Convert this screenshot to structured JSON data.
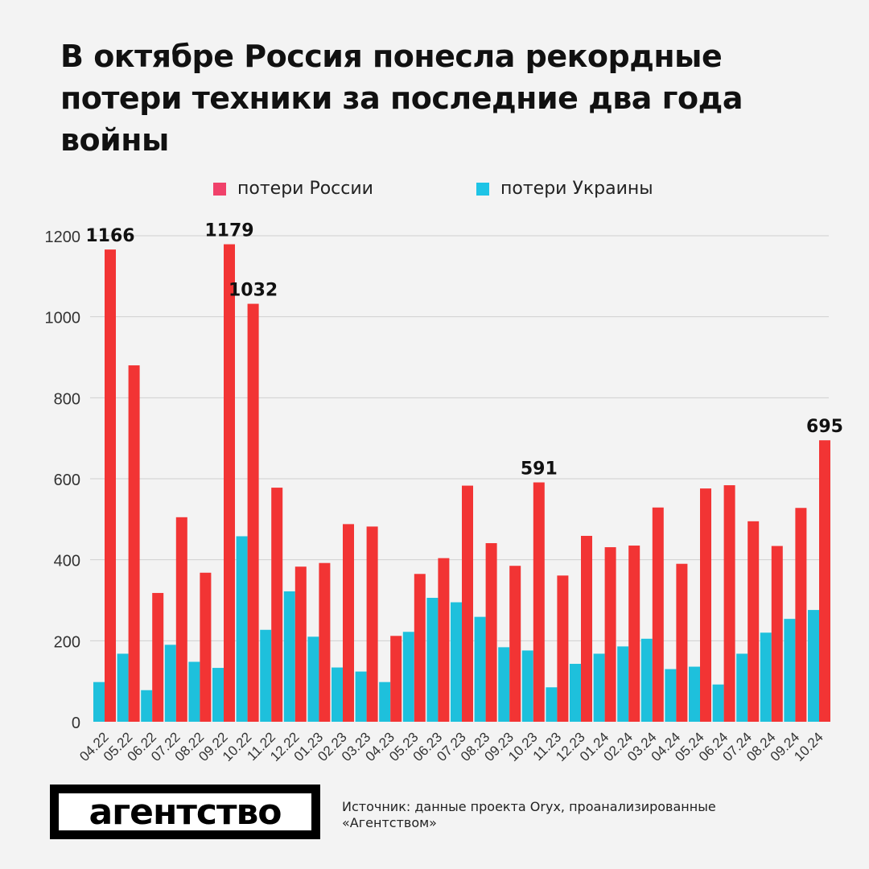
{
  "title": "В октябре Россия понесла рекордные потери техники за последние два года войны",
  "logo": "агентство",
  "source": "Источник: данные проекта Oryx, проанализированные «Агентством»",
  "chart_data": {
    "type": "bar",
    "categories": [
      "04.22",
      "05.22",
      "06.22",
      "07.22",
      "08.22",
      "09.22",
      "10.22",
      "11.22",
      "12.22",
      "01.23",
      "02.23",
      "03.23",
      "04.23",
      "05.23",
      "06.23",
      "07.23",
      "08.23",
      "09.23",
      "10.23",
      "11.23",
      "12.23",
      "01.24",
      "02.24",
      "03.24",
      "04.24",
      "05.24",
      "06.24",
      "07.24",
      "08.24",
      "09.24",
      "10.24"
    ],
    "series": [
      {
        "name": "потери России",
        "color": "#f23434",
        "legend_color": "#f0416a",
        "values": [
          1166,
          880,
          318,
          505,
          368,
          1179,
          1032,
          578,
          383,
          392,
          488,
          482,
          212,
          365,
          404,
          583,
          441,
          385,
          591,
          361,
          459,
          431,
          435,
          529,
          390,
          576,
          584,
          495,
          434,
          528,
          695
        ]
      },
      {
        "name": "потери Украины",
        "color": "#1ec0dc",
        "legend_color": "#1ec4e6",
        "values": [
          98,
          168,
          78,
          190,
          148,
          133,
          458,
          227,
          322,
          210,
          134,
          124,
          98,
          222,
          306,
          295,
          259,
          184,
          176,
          85,
          143,
          168,
          186,
          205,
          130,
          136,
          92,
          168,
          220,
          254,
          276
        ]
      }
    ],
    "data_labels": [
      {
        "index": 0,
        "text": "1166"
      },
      {
        "index": 5,
        "text": "1179"
      },
      {
        "index": 6,
        "text": "1032"
      },
      {
        "index": 18,
        "text": "591"
      },
      {
        "index": 30,
        "text": "695"
      }
    ],
    "yticks": [
      0,
      200,
      400,
      600,
      800,
      1000,
      1200
    ],
    "ylim": [
      0,
      1200
    ],
    "grid": true,
    "legend_position": "top"
  }
}
